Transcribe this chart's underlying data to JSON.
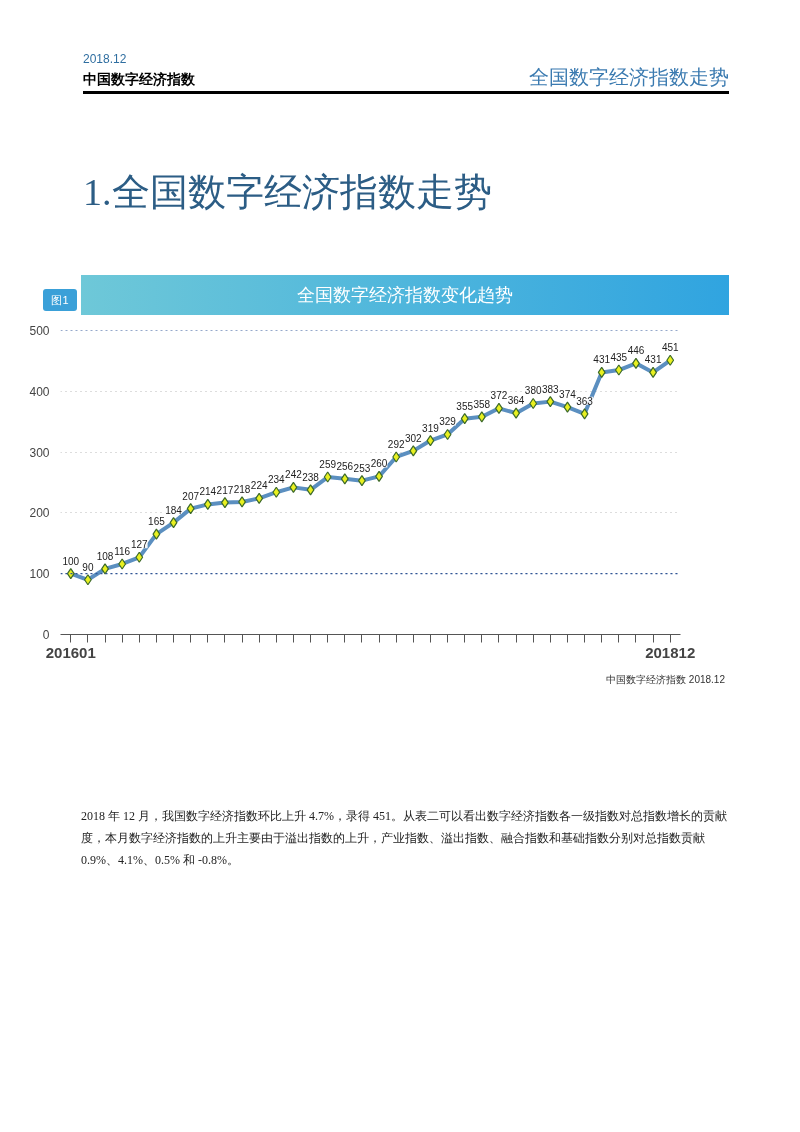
{
  "chart_data": {
    "type": "line",
    "title": "全国数字经济指数变化趋势",
    "annotations": [
      "2018.12",
      "中国数字经济指数",
      "全国数字经济指数走势",
      "1.全国数字经济指数走势",
      "图1",
      "中国数字经济指数  2018.12",
      "2018 年 12 月，我国数字经济指数环比上升 4.7%，录得 451。从表二可以看出数字经济指数各一级指数对总指数增长的贡献度，本月数字经济指数的上升主要由于溢出指数的上升，产业指数、溢出指数、融合指数和基础指数分别对总指数贡献 0.9%、4.1%、0.5% 和 -0.8%。"
    ],
    "categories": [
      "201601",
      null,
      null,
      null,
      null,
      null,
      null,
      null,
      null,
      null,
      null,
      null,
      null,
      null,
      null,
      null,
      null,
      null,
      null,
      null,
      null,
      null,
      null,
      null,
      null,
      null,
      null,
      null,
      null,
      null,
      null,
      null,
      null,
      null,
      null,
      "201812"
    ],
    "series": [
      {
        "color": "#5b8fc0",
        "values": [
          100,
          90,
          108,
          116,
          127,
          165,
          184,
          207,
          214,
          217,
          218,
          224,
          234,
          242,
          238,
          259,
          256,
          253,
          260,
          292,
          302,
          319,
          329,
          355,
          358,
          372,
          364,
          380,
          383,
          374,
          363,
          431,
          435,
          446,
          431,
          451
        ]
      }
    ],
    "ylim": [
      0,
      500
    ],
    "yticks": [
      0,
      100,
      200,
      300,
      400,
      500
    ],
    "grid": "y",
    "marker": "diamond",
    "line_style": "solid",
    "data_labels": true,
    "ref_lines": [
      {
        "axis": "y",
        "value": 100,
        "color": "#2f5597",
        "line_style": "dotted"
      },
      {
        "axis": "y",
        "value": 500,
        "color": "#2f5597",
        "line_style": "dotted"
      }
    ]
  }
}
